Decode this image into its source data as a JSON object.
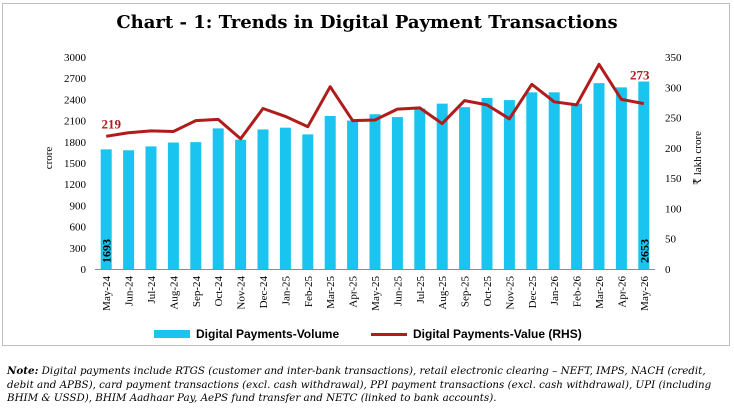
{
  "chart_data": {
    "type": "bar+line",
    "title": "Chart - 1: Trends in Digital Payment Transactions",
    "categories": [
      "May-24",
      "Jun-24",
      "Jul-24",
      "Aug-24",
      "Sep-24",
      "Oct-24",
      "Nov-24",
      "Dec-24",
      "Jan-25",
      "Feb-25",
      "Mar-25",
      "Apr-25",
      "May-25",
      "Jun-25",
      "Jul-25",
      "Aug-25",
      "Sep-25",
      "Oct-25",
      "Nov-25",
      "Dec-25",
      "Jan-26",
      "Feb-26",
      "Mar-26",
      "Apr-26",
      "May-26"
    ],
    "series": [
      {
        "name": "Digital Payments-Volume",
        "type": "bar",
        "axis": "left",
        "color": "#19c4ee",
        "values": [
          1693,
          1680,
          1735,
          1790,
          1795,
          1990,
          1830,
          1975,
          2000,
          1905,
          2165,
          2100,
          2190,
          2150,
          2270,
          2340,
          2290,
          2420,
          2390,
          2500,
          2500,
          2340,
          2630,
          2570,
          2653
        ]
      },
      {
        "name": "Digital Payments-Value (RHS)",
        "type": "line",
        "axis": "right",
        "color": "#b01c1c",
        "values": [
          219,
          225,
          228,
          227,
          245,
          247,
          215,
          265,
          252,
          235,
          301,
          245,
          246,
          264,
          266,
          240,
          278,
          271,
          248,
          305,
          276,
          271,
          338,
          280,
          273
        ]
      }
    ],
    "data_labels": {
      "bar_first": "1693",
      "bar_last": "2653",
      "line_first": "219",
      "line_last": "273"
    },
    "ylabel": "crore",
    "y2label": "₹ lakh crore",
    "ylim": [
      0,
      3000
    ],
    "y_ticks": [
      0,
      300,
      600,
      900,
      1200,
      1500,
      1800,
      2100,
      2400,
      2700,
      3000
    ],
    "y2lim": [
      0,
      350
    ],
    "y2_ticks": [
      0,
      50,
      100,
      150,
      200,
      250,
      300,
      350
    ],
    "legend_position": "bottom",
    "grid": false
  },
  "note": {
    "label": "Note:",
    "text": " Digital payments include RTGS (customer and inter-bank transactions), retail electronic clearing – NEFT, IMPS, NACH (credit, debit and APBS), card payment transactions (excl. cash withdrawal), PPI payment transactions (excl. cash withdrawal), UPI (including BHIM & USSD), BHIM Aadhaar Pay, AePS fund transfer and NETC (linked to bank accounts)."
  }
}
